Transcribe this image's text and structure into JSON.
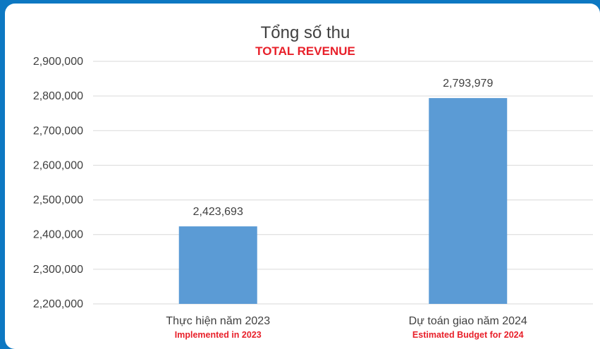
{
  "chart_data": {
    "type": "bar",
    "title": "Tổng số thu",
    "subtitle": "TOTAL REVENUE",
    "categories": [
      "Thực hiện năm 2023",
      "Dự toán giao năm 2024"
    ],
    "categories_en": [
      "Implemented in 2023",
      "Estimated Budget for 2024"
    ],
    "values": [
      2423693,
      2793979
    ],
    "value_labels": [
      "2,423,693",
      "2,793,979"
    ],
    "ylim": [
      2200000,
      2900000
    ],
    "yticks": [
      "2,200,000",
      "2,300,000",
      "2,400,000",
      "2,500,000",
      "2,600,000",
      "2,700,000",
      "2,800,000",
      "2,900,000"
    ],
    "grid": true,
    "bar_color": "#5b9bd5",
    "background_color": "#0d78c2"
  }
}
